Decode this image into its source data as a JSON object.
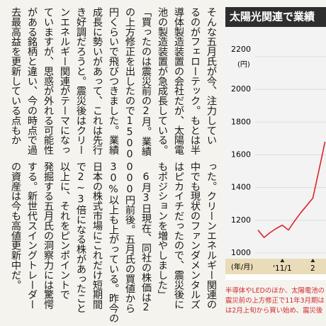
{
  "article": {
    "upper_columns": [
      "そんな五月氏が今、注力してい",
      "るのがフェローテック。もとは半",
      "導体製造装置の会社だが、太陽電",
      "池の製造装置が急成長している。",
      "「買ったのは震災前の2月。業績",
      "の上方修正を出したので1500",
      "円くらいで飛びつきました。業績",
      "成長に勢いがあって、これは先行",
      "き好調だろうと。震災後はクリー",
      "ンエネルギー関連がテーマになっ",
      "ていますが、思惑が外れる可能性",
      "がある銘柄と違い、今の時点で過",
      "去最高益を更新している点もか"
    ],
    "lower_columns": [
      "った。クリーンエネルギー関連の",
      "中でも現状のファンダメンタルズ",
      "はピカイチだったので、震災後に",
      "もポジションを増やしました」",
      "　6月3日現在、同社の株価は2",
      "000円前後。五月氏の買値から",
      "30%以上も上がっている。昨今の",
      "日本の株式市場にこれだけ短期間",
      "で2~3倍になる株があったこと",
      "以上に、それをピンポイントで",
      "発掘する五月氏の洞察力には驚愕",
      "する。新世代スイングトレーダー",
      "の資産は今も高値更新中だ。"
    ]
  },
  "chart_data": {
    "type": "line",
    "title": "太陽光関連で業績",
    "y_unit": "(円)",
    "x_label": "(年/月)",
    "categories": [
      null,
      null,
      null,
      null,
      "'11/1",
      null,
      null,
      null,
      null,
      "2",
      null,
      null
    ],
    "values": [
      1140,
      1095,
      1125,
      1150,
      1170,
      1140,
      1195,
      1245,
      1290,
      1335,
      1505,
      1680
    ],
    "color": "#d8262c",
    "ylim": [
      1000,
      2200
    ],
    "yticks": [
      1000,
      1200,
      1400,
      1600,
      1800,
      2000,
      2200
    ],
    "grid": true,
    "caption": [
      "半導体やLEDのほか、太陽電池の",
      "震災前の上方修正で11年3月期は",
      "は2月上旬から買い始め、震災後"
    ]
  }
}
